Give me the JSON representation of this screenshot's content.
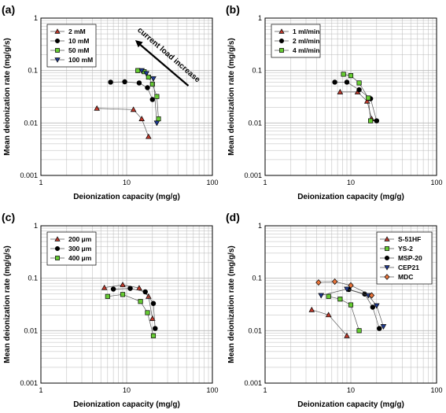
{
  "colors": {
    "red_triangle": "#c0392b",
    "black_circle": "#000000",
    "green_square": "#66cc33",
    "blue_triangle": "#1f3a93",
    "orange_diamond": "#e8743b",
    "grid": "#b8b8b8",
    "connector": "#555555"
  },
  "chart_data": [
    {
      "type": "scatter",
      "panel_label": "(a)",
      "xlabel": "Deionization capacity (mg/g)",
      "ylabel": "Mean deionization rate (mg/g/s)",
      "x_scale": "log",
      "y_scale": "log",
      "xlim": [
        1,
        100
      ],
      "ylim": [
        0.001,
        1
      ],
      "x_ticks": [
        "1",
        "10",
        "100"
      ],
      "y_ticks": [
        "0.001",
        "0.01",
        "0.1",
        "1"
      ],
      "grid": true,
      "legend": "top-left",
      "annotation": {
        "text": "current load increase",
        "arrow": "pointing up-left"
      },
      "series": [
        {
          "name": "2 mM",
          "marker": "triangle-up",
          "color": "red_triangle",
          "x": [
            4.5,
            12,
            15,
            18
          ],
          "y": [
            0.019,
            0.018,
            0.012,
            0.0055
          ]
        },
        {
          "name": "10 mM",
          "marker": "circle",
          "color": "black_circle",
          "x": [
            6.5,
            9.5,
            14,
            17.5,
            20
          ],
          "y": [
            0.06,
            0.061,
            0.058,
            0.047,
            0.028
          ]
        },
        {
          "name": "50 mM",
          "marker": "square",
          "color": "green_square",
          "x": [
            13.5,
            16,
            18,
            20,
            22.5,
            23.5
          ],
          "y": [
            0.1,
            0.095,
            0.075,
            0.055,
            0.032,
            0.012
          ]
        },
        {
          "name": "100 mM",
          "marker": "triangle-down",
          "color": "blue_triangle",
          "x": [
            15,
            17,
            20.5,
            22.5
          ],
          "y": [
            0.1,
            0.088,
            0.07,
            0.01
          ]
        }
      ]
    },
    {
      "type": "scatter",
      "panel_label": "(b)",
      "xlabel": "Deionization capacity (mg/g)",
      "ylabel": "Mean deionization rate (mg/g/s)",
      "x_scale": "log",
      "y_scale": "log",
      "xlim": [
        1,
        100
      ],
      "ylim": [
        0.001,
        1
      ],
      "x_ticks": [
        "1",
        "10",
        "100"
      ],
      "y_ticks": [
        "0.001",
        "0.01",
        "0.1",
        "1"
      ],
      "grid": true,
      "legend": "top-left",
      "series": [
        {
          "name": "1 ml/min",
          "marker": "triangle-up",
          "color": "red_triangle",
          "x": [
            7.5,
            12,
            15.5,
            17.5
          ],
          "y": [
            0.039,
            0.039,
            0.026,
            0.012
          ]
        },
        {
          "name": "2 ml/min",
          "marker": "circle",
          "color": "black_circle",
          "x": [
            6.5,
            9,
            12.5,
            17,
            20
          ],
          "y": [
            0.06,
            0.06,
            0.043,
            0.029,
            0.011
          ]
        },
        {
          "name": "4 ml/min",
          "marker": "square",
          "color": "green_square",
          "x": [
            8.2,
            10,
            12.5,
            16,
            17
          ],
          "y": [
            0.085,
            0.08,
            0.058,
            0.03,
            0.011
          ]
        }
      ]
    },
    {
      "type": "scatter",
      "panel_label": "(c)",
      "xlabel": "Deionization capacity (mg/g)",
      "ylabel": "Mean deionization rate (mg/g/s)",
      "x_scale": "log",
      "y_scale": "log",
      "xlim": [
        1,
        100
      ],
      "ylim": [
        0.001,
        1
      ],
      "x_ticks": [
        "1",
        "10",
        "100"
      ],
      "y_ticks": [
        "0.001",
        "0.01",
        "0.1",
        "1"
      ],
      "grid": true,
      "legend": "top-left",
      "series": [
        {
          "name": "200 μm",
          "marker": "triangle-up",
          "color": "red_triangle",
          "x": [
            5.5,
            9,
            14,
            18,
            20
          ],
          "y": [
            0.066,
            0.075,
            0.065,
            0.045,
            0.017
          ]
        },
        {
          "name": "300 μm",
          "marker": "circle",
          "color": "black_circle",
          "x": [
            7,
            11,
            16.5,
            20.5,
            21.5
          ],
          "y": [
            0.062,
            0.064,
            0.055,
            0.033,
            0.011
          ]
        },
        {
          "name": "400 μm",
          "marker": "square",
          "color": "green_square",
          "x": [
            6,
            9,
            14.5,
            17.5,
            20.5
          ],
          "y": [
            0.045,
            0.049,
            0.036,
            0.022,
            0.008
          ]
        }
      ]
    },
    {
      "type": "scatter",
      "panel_label": "(d)",
      "xlabel": "Deionization capacity (mg/g)",
      "ylabel": "Mean deionization rate (mg/g/s)",
      "x_scale": "log",
      "y_scale": "log",
      "xlim": [
        1,
        100
      ],
      "ylim": [
        0.001,
        1
      ],
      "x_ticks": [
        "1",
        "10",
        "100"
      ],
      "y_ticks": [
        "0.001",
        "0.01",
        "0.1",
        "1"
      ],
      "grid": true,
      "legend": "top-right",
      "series": [
        {
          "name": "S-51HF",
          "marker": "triangle-up",
          "color": "red_triangle",
          "x": [
            3.5,
            5.5,
            9
          ],
          "y": [
            0.025,
            0.02,
            0.008
          ]
        },
        {
          "name": "YS-2",
          "marker": "square",
          "color": "green_square",
          "x": [
            5.5,
            7.5,
            10,
            12.5
          ],
          "y": [
            0.045,
            0.04,
            0.031,
            0.01
          ]
        },
        {
          "name": "MSP-20",
          "marker": "circle",
          "color": "black_circle",
          "x": [
            9.5,
            14.5,
            18,
            21.5
          ],
          "y": [
            0.061,
            0.05,
            0.028,
            0.011
          ]
        },
        {
          "name": "CEP21",
          "marker": "triangle-down",
          "color": "blue_triangle",
          "x": [
            4.5,
            9,
            16,
            20,
            24
          ],
          "y": [
            0.047,
            0.062,
            0.047,
            0.03,
            0.012
          ]
        },
        {
          "name": "MDC",
          "marker": "diamond",
          "color": "orange_diamond",
          "x": [
            4.2,
            6.5,
            10,
            17.5
          ],
          "y": [
            0.083,
            0.086,
            0.073,
            0.047
          ]
        }
      ]
    }
  ]
}
